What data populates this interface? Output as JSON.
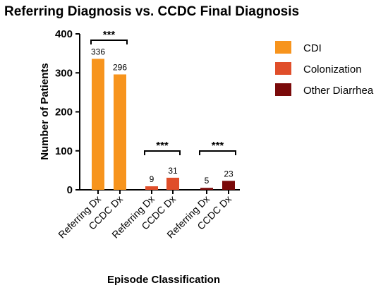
{
  "chart_data": {
    "type": "bar",
    "title": "Referring Diagnosis vs. CCDC Final Diagnosis",
    "xlabel": "Episode Classification",
    "ylabel": "Number of Patients",
    "ylim": [
      0,
      400
    ],
    "yticks": [
      0,
      100,
      200,
      300,
      400
    ],
    "groups": [
      {
        "name": "CDI",
        "color": "#F7941D",
        "significance": "***",
        "bars": [
          {
            "category": "Referring Dx",
            "value": 336
          },
          {
            "category": "CCDC Dx",
            "value": 296
          }
        ]
      },
      {
        "name": "Colonization",
        "color": "#E04E2A",
        "significance": "***",
        "bars": [
          {
            "category": "Referring Dx",
            "value": 9
          },
          {
            "category": "CCDC Dx",
            "value": 31
          }
        ]
      },
      {
        "name": "Other Diarrhea",
        "color": "#7A0A0A",
        "significance": "***",
        "bars": [
          {
            "category": "Referring Dx",
            "value": 5
          },
          {
            "category": "CCDC Dx",
            "value": 23
          }
        ]
      }
    ],
    "legend": {
      "position": "right",
      "items": [
        {
          "label": "CDI",
          "color": "#F7941D"
        },
        {
          "label": "Colonization",
          "color": "#E04E2A"
        },
        {
          "label": "Other Diarrhea",
          "color": "#7A0A0A"
        }
      ]
    },
    "grid": false
  }
}
